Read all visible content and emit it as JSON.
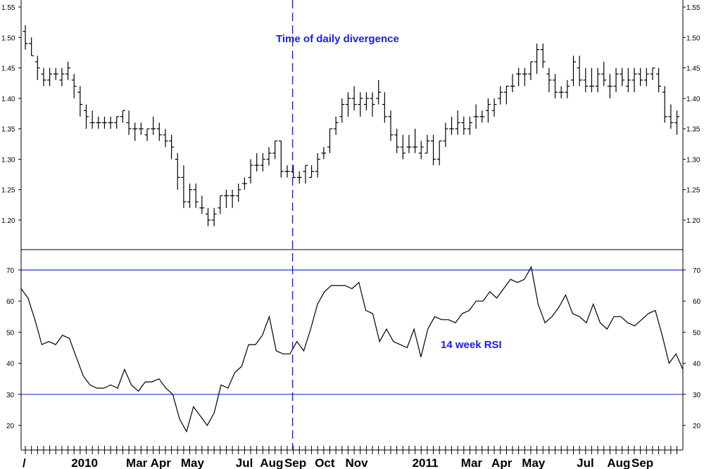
{
  "chart_data": [
    {
      "type": "ohlc",
      "ylim": [
        1.15,
        1.56
      ],
      "yticks": [
        "1.20",
        "1.25",
        "1.30",
        "1.35",
        "1.40",
        "1.45",
        "1.50",
        "1.55"
      ],
      "annotation": "Time of daily divergence",
      "annotation_color": "#1a1aff",
      "divergence_week": 44,
      "bars": [
        [
          1.51,
          1.52,
          1.48,
          1.49
        ],
        [
          1.49,
          1.5,
          1.47,
          1.47
        ],
        [
          1.46,
          1.47,
          1.43,
          1.45
        ],
        [
          1.44,
          1.45,
          1.42,
          1.43
        ],
        [
          1.43,
          1.45,
          1.42,
          1.44
        ],
        [
          1.44,
          1.45,
          1.43,
          1.44
        ],
        [
          1.43,
          1.45,
          1.42,
          1.44
        ],
        [
          1.44,
          1.46,
          1.43,
          1.45
        ],
        [
          1.43,
          1.44,
          1.4,
          1.42
        ],
        [
          1.41,
          1.42,
          1.37,
          1.39
        ],
        [
          1.38,
          1.39,
          1.35,
          1.37
        ],
        [
          1.36,
          1.38,
          1.35,
          1.36
        ],
        [
          1.36,
          1.37,
          1.35,
          1.36
        ],
        [
          1.36,
          1.37,
          1.35,
          1.36
        ],
        [
          1.36,
          1.37,
          1.35,
          1.36
        ],
        [
          1.36,
          1.37,
          1.35,
          1.37
        ],
        [
          1.37,
          1.38,
          1.36,
          1.38
        ],
        [
          1.36,
          1.38,
          1.34,
          1.35
        ],
        [
          1.35,
          1.36,
          1.33,
          1.35
        ],
        [
          1.35,
          1.36,
          1.34,
          1.35
        ],
        [
          1.34,
          1.35,
          1.33,
          1.35
        ],
        [
          1.35,
          1.37,
          1.34,
          1.35
        ],
        [
          1.35,
          1.36,
          1.33,
          1.34
        ],
        [
          1.34,
          1.35,
          1.32,
          1.33
        ],
        [
          1.33,
          1.34,
          1.3,
          1.32
        ],
        [
          1.3,
          1.31,
          1.25,
          1.27
        ],
        [
          1.27,
          1.29,
          1.22,
          1.23
        ],
        [
          1.23,
          1.26,
          1.22,
          1.25
        ],
        [
          1.25,
          1.26,
          1.22,
          1.23
        ],
        [
          1.22,
          1.24,
          1.21,
          1.22
        ],
        [
          1.21,
          1.22,
          1.19,
          1.2
        ],
        [
          1.2,
          1.22,
          1.19,
          1.21
        ],
        [
          1.22,
          1.24,
          1.21,
          1.24
        ],
        [
          1.24,
          1.25,
          1.22,
          1.24
        ],
        [
          1.24,
          1.25,
          1.22,
          1.24
        ],
        [
          1.24,
          1.26,
          1.23,
          1.25
        ],
        [
          1.26,
          1.27,
          1.25,
          1.26
        ],
        [
          1.27,
          1.3,
          1.26,
          1.29
        ],
        [
          1.29,
          1.31,
          1.28,
          1.29
        ],
        [
          1.29,
          1.31,
          1.28,
          1.3
        ],
        [
          1.3,
          1.32,
          1.29,
          1.31
        ],
        [
          1.31,
          1.33,
          1.3,
          1.33
        ],
        [
          1.33,
          1.33,
          1.27,
          1.28
        ],
        [
          1.28,
          1.29,
          1.27,
          1.28
        ],
        [
          1.28,
          1.29,
          1.27,
          1.27
        ],
        [
          1.27,
          1.28,
          1.26,
          1.27
        ],
        [
          1.28,
          1.29,
          1.26,
          1.29
        ],
        [
          1.27,
          1.29,
          1.27,
          1.28
        ],
        [
          1.28,
          1.31,
          1.27,
          1.3
        ],
        [
          1.31,
          1.32,
          1.3,
          1.31
        ],
        [
          1.32,
          1.35,
          1.31,
          1.35
        ],
        [
          1.35,
          1.37,
          1.34,
          1.36
        ],
        [
          1.37,
          1.4,
          1.36,
          1.39
        ],
        [
          1.39,
          1.41,
          1.37,
          1.4
        ],
        [
          1.4,
          1.42,
          1.38,
          1.39
        ],
        [
          1.39,
          1.41,
          1.37,
          1.4
        ],
        [
          1.39,
          1.41,
          1.38,
          1.4
        ],
        [
          1.4,
          1.41,
          1.37,
          1.39
        ],
        [
          1.4,
          1.43,
          1.39,
          1.41
        ],
        [
          1.39,
          1.41,
          1.36,
          1.37
        ],
        [
          1.37,
          1.38,
          1.33,
          1.34
        ],
        [
          1.34,
          1.35,
          1.31,
          1.32
        ],
        [
          1.32,
          1.34,
          1.3,
          1.31
        ],
        [
          1.32,
          1.34,
          1.31,
          1.32
        ],
        [
          1.32,
          1.35,
          1.31,
          1.32
        ],
        [
          1.31,
          1.33,
          1.3,
          1.32
        ],
        [
          1.31,
          1.34,
          1.31,
          1.33
        ],
        [
          1.33,
          1.34,
          1.29,
          1.3
        ],
        [
          1.3,
          1.33,
          1.29,
          1.33
        ],
        [
          1.33,
          1.36,
          1.32,
          1.35
        ],
        [
          1.35,
          1.37,
          1.34,
          1.35
        ],
        [
          1.35,
          1.38,
          1.34,
          1.36
        ],
        [
          1.36,
          1.37,
          1.34,
          1.35
        ],
        [
          1.35,
          1.37,
          1.34,
          1.36
        ],
        [
          1.37,
          1.39,
          1.35,
          1.37
        ],
        [
          1.37,
          1.38,
          1.36,
          1.37
        ],
        [
          1.38,
          1.4,
          1.36,
          1.39
        ],
        [
          1.38,
          1.4,
          1.37,
          1.39
        ],
        [
          1.4,
          1.42,
          1.39,
          1.41
        ],
        [
          1.41,
          1.42,
          1.39,
          1.42
        ],
        [
          1.42,
          1.44,
          1.41,
          1.42
        ],
        [
          1.44,
          1.45,
          1.42,
          1.44
        ],
        [
          1.44,
          1.45,
          1.42,
          1.44
        ],
        [
          1.44,
          1.46,
          1.43,
          1.46
        ],
        [
          1.46,
          1.49,
          1.44,
          1.48
        ],
        [
          1.48,
          1.49,
          1.45,
          1.46
        ],
        [
          1.44,
          1.45,
          1.41,
          1.43
        ],
        [
          1.43,
          1.44,
          1.4,
          1.41
        ],
        [
          1.41,
          1.42,
          1.4,
          1.41
        ],
        [
          1.41,
          1.43,
          1.4,
          1.42
        ],
        [
          1.43,
          1.47,
          1.42,
          1.46
        ],
        [
          1.45,
          1.47,
          1.42,
          1.43
        ],
        [
          1.43,
          1.45,
          1.41,
          1.42
        ],
        [
          1.42,
          1.45,
          1.41,
          1.42
        ],
        [
          1.42,
          1.45,
          1.41,
          1.44
        ],
        [
          1.44,
          1.46,
          1.42,
          1.43
        ],
        [
          1.42,
          1.44,
          1.4,
          1.42
        ],
        [
          1.42,
          1.45,
          1.41,
          1.44
        ],
        [
          1.44,
          1.45,
          1.42,
          1.43
        ],
        [
          1.42,
          1.45,
          1.41,
          1.43
        ],
        [
          1.43,
          1.45,
          1.41,
          1.44
        ],
        [
          1.44,
          1.45,
          1.42,
          1.43
        ],
        [
          1.43,
          1.45,
          1.42,
          1.44
        ],
        [
          1.44,
          1.45,
          1.43,
          1.45
        ],
        [
          1.44,
          1.45,
          1.41,
          1.42
        ],
        [
          1.41,
          1.42,
          1.36,
          1.37
        ],
        [
          1.37,
          1.39,
          1.35,
          1.36
        ],
        [
          1.36,
          1.38,
          1.34,
          1.37
        ]
      ]
    },
    {
      "type": "line",
      "ylim": [
        15,
        77
      ],
      "yticks": [
        "20",
        "30",
        "40",
        "50",
        "60",
        "70"
      ],
      "reference_lines": [
        30,
        70
      ],
      "reference_color": "#2233dd",
      "annotation": "14 week RSI",
      "annotation_color": "#1a1aff",
      "values": [
        64,
        61,
        54,
        46,
        47,
        46,
        49,
        48,
        42,
        36,
        33,
        32,
        32,
        33,
        32,
        38,
        33,
        31,
        34,
        34,
        35,
        32,
        30,
        22,
        18,
        26,
        23,
        20,
        24,
        33,
        32,
        37,
        39,
        46,
        46,
        49,
        55,
        44,
        43,
        43,
        47,
        44,
        51,
        59,
        63,
        65,
        65,
        65,
        64,
        66,
        57,
        56,
        47,
        51,
        47,
        46,
        45,
        51,
        42,
        51,
        55,
        54,
        54,
        53,
        56,
        57,
        60,
        60,
        63,
        61,
        64,
        67,
        66,
        67,
        71,
        59,
        53,
        55,
        58,
        62,
        56,
        55,
        53,
        59,
        53,
        51,
        55,
        55,
        53,
        52,
        54,
        56,
        57,
        49,
        40,
        43,
        38
      ]
    }
  ],
  "x_axis": {
    "labels": [
      {
        "text": "/",
        "week": 0
      },
      {
        "text": "2010",
        "week": 8
      },
      {
        "text": "Mar",
        "week": 17
      },
      {
        "text": "Apr",
        "week": 21
      },
      {
        "text": "May",
        "week": 26
      },
      {
        "text": "Jul",
        "week": 35
      },
      {
        "text": "Aug",
        "week": 39
      },
      {
        "text": "Sep",
        "week": 43
      },
      {
        "text": "Oct",
        "week": 48
      },
      {
        "text": "Nov",
        "week": 53
      },
      {
        "text": "2011",
        "week": 64
      },
      {
        "text": "Mar",
        "week": 72
      },
      {
        "text": "Apr",
        "week": 77
      },
      {
        "text": "May",
        "week": 82
      },
      {
        "text": "Jul",
        "week": 91
      },
      {
        "text": "Aug",
        "week": 96
      },
      {
        "text": "Sep",
        "week": 100
      }
    ]
  }
}
